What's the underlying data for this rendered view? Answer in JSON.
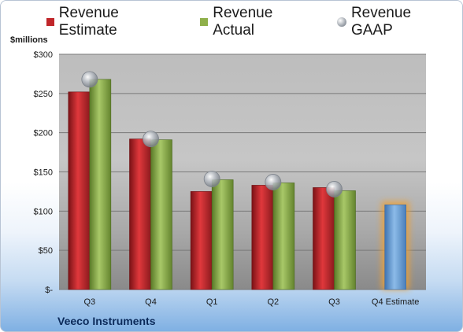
{
  "legend": {
    "estimate_label": "Revenue Estimate",
    "actual_label": "Revenue Actual",
    "gaap_label": "Revenue GAAP"
  },
  "unit_label": "$millions",
  "company_label": "Veeco Instruments",
  "colors": {
    "estimate": "#c0262a",
    "actual": "#8fb04a",
    "gaap": "#9aa0a8",
    "forecast": "#6a9fd6",
    "forecast_glow": "#f0a030"
  },
  "chart_data": {
    "type": "bar",
    "title": "",
    "xlabel": "",
    "ylabel": "$millions",
    "ylim": [
      0,
      300
    ],
    "yticks": [
      0,
      50,
      100,
      150,
      200,
      250,
      300
    ],
    "ytick_labels": [
      "$-",
      "$50",
      "$100",
      "$150",
      "$200",
      "$250",
      "$300"
    ],
    "categories": [
      "Q3",
      "Q4",
      "Q1",
      "Q2",
      "Q3",
      "Q4 Estimate"
    ],
    "grid": true,
    "legend_position": "top",
    "series": [
      {
        "name": "Revenue Estimate",
        "type": "bar",
        "values": [
          252,
          192,
          125,
          133,
          130,
          108
        ]
      },
      {
        "name": "Revenue Actual",
        "type": "bar",
        "values": [
          268,
          191,
          140,
          136,
          126,
          null
        ]
      },
      {
        "name": "Revenue GAAP",
        "type": "scatter",
        "values": [
          268,
          192,
          141,
          137,
          128,
          null
        ]
      }
    ]
  }
}
